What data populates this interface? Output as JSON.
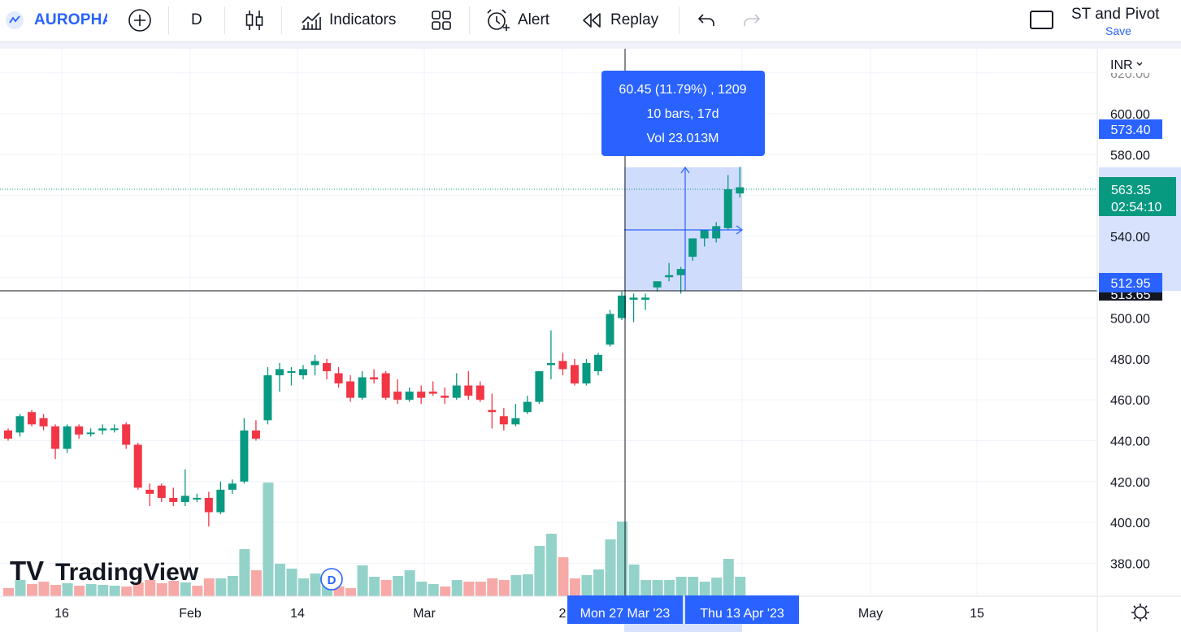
{
  "toolbar": {
    "symbol": "AUROPHA",
    "interval": "D",
    "indicators_label": "Indicators",
    "alert_label": "Alert",
    "replay_label": "Replay",
    "layout_name": "ST and Pivot",
    "save_label": "Save",
    "icons": [
      "symbol-logo-icon",
      "add-symbol-icon",
      "candles-icon",
      "indicators-icon",
      "templates-icon",
      "alert-icon",
      "replay-icon",
      "undo-icon",
      "redo-icon",
      "layout-icon"
    ]
  },
  "price_axis": {
    "currency": "INR",
    "ticks": [
      "600.00",
      "580.00",
      "540.00",
      "500.00",
      "480.00",
      "460.00",
      "440.00",
      "420.00",
      "400.00",
      "380.00"
    ],
    "top_partial_tick": "620.00",
    "measure_high_label": "573.40",
    "last_price_label": "563.35",
    "countdown_label": "02:54:10",
    "measure_low_label": "512.95",
    "crosshair_price_label": "513.65"
  },
  "time_axis": {
    "ticks": [
      "16",
      "Feb",
      "14",
      "Mar",
      "2",
      "May",
      "15"
    ],
    "measure_start_label": "Mon 27 Mar '23",
    "measure_end_label": "Thu 13 Apr '23"
  },
  "measure_tooltip": {
    "line1": "60.45 (11.79%) , 1209",
    "line2": "10 bars, 17d",
    "line3": "Vol 23.013M"
  },
  "watermark": "TradingView",
  "dividends_badge": "D",
  "colors": {
    "up": "#089981",
    "down": "#f23645",
    "vol_up": "#93d2c9",
    "vol_down": "#f7a9a7",
    "accent": "#2962ff",
    "measure_fill": "#c8d6fb"
  },
  "chart_data": {
    "type": "candlestick",
    "ylim": [
      372,
      628
    ],
    "bars": [
      {
        "o": 445,
        "h": 446,
        "l": 440,
        "c": 441
      },
      {
        "o": 444,
        "h": 453,
        "l": 442,
        "c": 452
      },
      {
        "o": 454,
        "h": 455,
        "l": 447,
        "c": 448
      },
      {
        "o": 451,
        "h": 453,
        "l": 445,
        "c": 447
      },
      {
        "o": 447,
        "h": 448,
        "l": 431,
        "c": 436
      },
      {
        "o": 436,
        "h": 448,
        "l": 434,
        "c": 447
      },
      {
        "o": 447,
        "h": 448,
        "l": 441,
        "c": 443
      },
      {
        "o": 444,
        "h": 446,
        "l": 442,
        "c": 444
      },
      {
        "o": 445,
        "h": 448,
        "l": 443,
        "c": 446
      },
      {
        "o": 446,
        "h": 448,
        "l": 444,
        "c": 446
      },
      {
        "o": 448,
        "h": 449,
        "l": 436,
        "c": 438
      },
      {
        "o": 438,
        "h": 439,
        "l": 416,
        "c": 417
      },
      {
        "o": 416,
        "h": 419,
        "l": 408,
        "c": 414
      },
      {
        "o": 418,
        "h": 419,
        "l": 410,
        "c": 412
      },
      {
        "o": 412,
        "h": 417,
        "l": 408,
        "c": 410
      },
      {
        "o": 410,
        "h": 426,
        "l": 408,
        "c": 413
      },
      {
        "o": 412,
        "h": 414,
        "l": 410,
        "c": 412
      },
      {
        "o": 412,
        "h": 415,
        "l": 398,
        "c": 405
      },
      {
        "o": 405,
        "h": 420,
        "l": 404,
        "c": 416
      },
      {
        "o": 416,
        "h": 421,
        "l": 414,
        "c": 419
      },
      {
        "o": 420,
        "h": 451,
        "l": 419,
        "c": 445
      },
      {
        "o": 445,
        "h": 450,
        "l": 440,
        "c": 441
      },
      {
        "o": 450,
        "h": 476,
        "l": 448,
        "c": 472
      },
      {
        "o": 472,
        "h": 478,
        "l": 464,
        "c": 475
      },
      {
        "o": 474,
        "h": 476,
        "l": 467,
        "c": 474
      },
      {
        "o": 472,
        "h": 477,
        "l": 470,
        "c": 475
      },
      {
        "o": 477,
        "h": 482,
        "l": 472,
        "c": 479
      },
      {
        "o": 478,
        "h": 480,
        "l": 470,
        "c": 474
      },
      {
        "o": 473,
        "h": 476,
        "l": 466,
        "c": 468
      },
      {
        "o": 469,
        "h": 472,
        "l": 459,
        "c": 461
      },
      {
        "o": 461,
        "h": 474,
        "l": 460,
        "c": 471
      },
      {
        "o": 471,
        "h": 475,
        "l": 468,
        "c": 470
      },
      {
        "o": 473,
        "h": 474,
        "l": 460,
        "c": 461
      },
      {
        "o": 464,
        "h": 470,
        "l": 458,
        "c": 460
      },
      {
        "o": 460,
        "h": 466,
        "l": 459,
        "c": 464
      },
      {
        "o": 464,
        "h": 467,
        "l": 458,
        "c": 461
      },
      {
        "o": 464,
        "h": 469,
        "l": 462,
        "c": 463
      },
      {
        "o": 462,
        "h": 466,
        "l": 458,
        "c": 461
      },
      {
        "o": 461,
        "h": 473,
        "l": 460,
        "c": 467
      },
      {
        "o": 467,
        "h": 474,
        "l": 460,
        "c": 462
      },
      {
        "o": 467,
        "h": 469,
        "l": 459,
        "c": 460
      },
      {
        "o": 455,
        "h": 463,
        "l": 446,
        "c": 454
      },
      {
        "o": 452,
        "h": 456,
        "l": 445,
        "c": 448
      },
      {
        "o": 448,
        "h": 458,
        "l": 447,
        "c": 451
      },
      {
        "o": 454,
        "h": 462,
        "l": 453,
        "c": 459
      },
      {
        "o": 459,
        "h": 474,
        "l": 458,
        "c": 474
      },
      {
        "o": 477,
        "h": 494,
        "l": 470,
        "c": 478
      },
      {
        "o": 479,
        "h": 483,
        "l": 472,
        "c": 475
      },
      {
        "o": 477,
        "h": 480,
        "l": 467,
        "c": 468
      },
      {
        "o": 468,
        "h": 480,
        "l": 467,
        "c": 478
      },
      {
        "o": 474,
        "h": 483,
        "l": 472,
        "c": 482
      },
      {
        "o": 487,
        "h": 504,
        "l": 486,
        "c": 502
      },
      {
        "o": 500,
        "h": 513,
        "l": 499,
        "c": 511
      },
      {
        "o": 509,
        "h": 512,
        "l": 498,
        "c": 510
      },
      {
        "o": 509,
        "h": 512,
        "l": 504,
        "c": 510
      },
      {
        "o": 515,
        "h": 518,
        "l": 513,
        "c": 518
      },
      {
        "o": 520,
        "h": 527,
        "l": 518,
        "c": 521
      },
      {
        "o": 521,
        "h": 525,
        "l": 512,
        "c": 524
      },
      {
        "o": 530,
        "h": 539,
        "l": 528,
        "c": 539
      },
      {
        "o": 539,
        "h": 543,
        "l": 535,
        "c": 543
      },
      {
        "o": 539,
        "h": 547,
        "l": 537,
        "c": 545
      },
      {
        "o": 544,
        "h": 570,
        "l": 543,
        "c": 563
      },
      {
        "o": 561,
        "h": 574,
        "l": 559,
        "c": 564
      }
    ],
    "volumes": [
      {
        "v": 10,
        "d": "down"
      },
      {
        "v": 20,
        "d": "up"
      },
      {
        "v": 15,
        "d": "down"
      },
      {
        "v": 18,
        "d": "down"
      },
      {
        "v": 14,
        "d": "down"
      },
      {
        "v": 16,
        "d": "up"
      },
      {
        "v": 13,
        "d": "down"
      },
      {
        "v": 15,
        "d": "up"
      },
      {
        "v": 14,
        "d": "up"
      },
      {
        "v": 13,
        "d": "up"
      },
      {
        "v": 12,
        "d": "down"
      },
      {
        "v": 17,
        "d": "down"
      },
      {
        "v": 20,
        "d": "down"
      },
      {
        "v": 16,
        "d": "down"
      },
      {
        "v": 19,
        "d": "down"
      },
      {
        "v": 17,
        "d": "up"
      },
      {
        "v": 13,
        "d": "down"
      },
      {
        "v": 22,
        "d": "down"
      },
      {
        "v": 22,
        "d": "up"
      },
      {
        "v": 25,
        "d": "up"
      },
      {
        "v": 58,
        "d": "up"
      },
      {
        "v": 32,
        "d": "down"
      },
      {
        "v": 140,
        "d": "up"
      },
      {
        "v": 40,
        "d": "up"
      },
      {
        "v": 34,
        "d": "up"
      },
      {
        "v": 22,
        "d": "up"
      },
      {
        "v": 28,
        "d": "up"
      },
      {
        "v": 16,
        "d": "up"
      },
      {
        "v": 12,
        "d": "down"
      },
      {
        "v": 10,
        "d": "down"
      },
      {
        "v": 38,
        "d": "up"
      },
      {
        "v": 24,
        "d": "up"
      },
      {
        "v": 20,
        "d": "down"
      },
      {
        "v": 25,
        "d": "up"
      },
      {
        "v": 32,
        "d": "up"
      },
      {
        "v": 18,
        "d": "up"
      },
      {
        "v": 15,
        "d": "up"
      },
      {
        "v": 12,
        "d": "down"
      },
      {
        "v": 20,
        "d": "up"
      },
      {
        "v": 18,
        "d": "down"
      },
      {
        "v": 18,
        "d": "down"
      },
      {
        "v": 22,
        "d": "down"
      },
      {
        "v": 20,
        "d": "down"
      },
      {
        "v": 26,
        "d": "up"
      },
      {
        "v": 27,
        "d": "up"
      },
      {
        "v": 62,
        "d": "up"
      },
      {
        "v": 77,
        "d": "up"
      },
      {
        "v": 48,
        "d": "down"
      },
      {
        "v": 22,
        "d": "down"
      },
      {
        "v": 26,
        "d": "up"
      },
      {
        "v": 33,
        "d": "up"
      },
      {
        "v": 70,
        "d": "up"
      },
      {
        "v": 92,
        "d": "up"
      },
      {
        "v": 39,
        "d": "up"
      },
      {
        "v": 20,
        "d": "up"
      },
      {
        "v": 20,
        "d": "up"
      },
      {
        "v": 20,
        "d": "up"
      },
      {
        "v": 24,
        "d": "up"
      },
      {
        "v": 24,
        "d": "up"
      },
      {
        "v": 18,
        "d": "up"
      },
      {
        "v": 23,
        "d": "up"
      },
      {
        "v": 46,
        "d": "up"
      },
      {
        "v": 24,
        "d": "up"
      }
    ]
  }
}
